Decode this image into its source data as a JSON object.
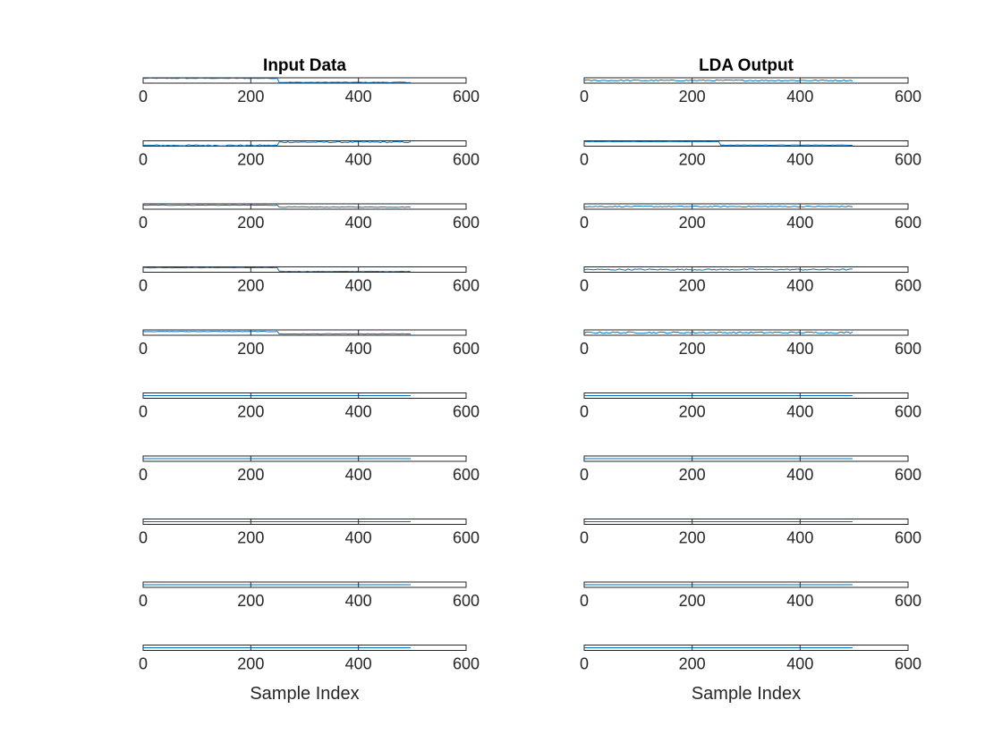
{
  "colors": {
    "line": "#0072BD",
    "axes": "#262626",
    "background": "#ffffff"
  },
  "chart_data": [
    {
      "type": "line",
      "title": "Input Data",
      "xlabel": "Sample Index",
      "ylabel": "",
      "xlim": [
        0,
        600
      ],
      "xticks": [
        0,
        200,
        400,
        600
      ],
      "xtick_labels": [
        "0",
        "200",
        "400",
        "600"
      ],
      "grid": false,
      "subplots": [
        {
          "x_range": [
            1,
            500
          ],
          "segments": [
            {
              "from": 1,
              "to": 250,
              "level": 0.9
            },
            {
              "from": 251,
              "to": 500,
              "level": 0.15
            }
          ],
          "noise": 0.05
        },
        {
          "x_range": [
            1,
            500
          ],
          "segments": [
            {
              "from": 1,
              "to": 250,
              "level": 0.15
            },
            {
              "from": 251,
              "to": 500,
              "level": 0.75
            }
          ],
          "noise": 0.12
        },
        {
          "x_range": [
            1,
            500
          ],
          "segments": [
            {
              "from": 1,
              "to": 250,
              "level": 0.75
            },
            {
              "from": 251,
              "to": 500,
              "level": 0.4
            }
          ],
          "noise": 0.05
        },
        {
          "x_range": [
            1,
            500
          ],
          "segments": [
            {
              "from": 1,
              "to": 250,
              "level": 0.85
            },
            {
              "from": 251,
              "to": 500,
              "level": 0.15
            }
          ],
          "noise": 0.05
        },
        {
          "x_range": [
            1,
            500
          ],
          "segments": [
            {
              "from": 1,
              "to": 250,
              "level": 0.7
            },
            {
              "from": 251,
              "to": 500,
              "level": 0.25
            }
          ],
          "noise": 0.04
        },
        {
          "x_range": [
            1,
            500
          ],
          "segments": [
            {
              "from": 1,
              "to": 500,
              "level": 0.5
            }
          ],
          "noise": 0.0
        },
        {
          "x_range": [
            1,
            500
          ],
          "segments": [
            {
              "from": 1,
              "to": 500,
              "level": 0.5
            }
          ],
          "noise": 0.0
        },
        {
          "x_range": [
            1,
            500
          ],
          "segments": [
            {
              "from": 1,
              "to": 500,
              "level": 0.5
            }
          ],
          "noise": 0.0
        },
        {
          "x_range": [
            1,
            500
          ],
          "segments": [
            {
              "from": 1,
              "to": 500,
              "level": 0.5
            }
          ],
          "noise": 0.0
        },
        {
          "x_range": [
            1,
            500
          ],
          "segments": [
            {
              "from": 1,
              "to": 500,
              "level": 0.5
            }
          ],
          "noise": 0.0
        }
      ]
    },
    {
      "type": "line",
      "title": "LDA Output",
      "xlabel": "Sample Index",
      "ylabel": "",
      "xlim": [
        0,
        600
      ],
      "xticks": [
        0,
        200,
        400,
        600
      ],
      "xtick_labels": [
        "0",
        "200",
        "400",
        "600"
      ],
      "grid": false,
      "subplots": [
        {
          "x_range": [
            1,
            500
          ],
          "segments": [
            {
              "from": 1,
              "to": 500,
              "level": 0.5
            }
          ],
          "noise": 0.12
        },
        {
          "x_range": [
            1,
            500
          ],
          "segments": [
            {
              "from": 1,
              "to": 250,
              "level": 0.85
            },
            {
              "from": 251,
              "to": 500,
              "level": 0.2
            }
          ],
          "noise": 0.04
        },
        {
          "x_range": [
            1,
            500
          ],
          "segments": [
            {
              "from": 1,
              "to": 250,
              "level": 0.5
            },
            {
              "from": 251,
              "to": 500,
              "level": 0.5
            }
          ],
          "noise": 0.1
        },
        {
          "x_range": [
            1,
            500
          ],
          "segments": [
            {
              "from": 1,
              "to": 500,
              "level": 0.5
            }
          ],
          "noise": 0.12
        },
        {
          "x_range": [
            1,
            500
          ],
          "segments": [
            {
              "from": 1,
              "to": 500,
              "level": 0.5
            }
          ],
          "noise": 0.15
        },
        {
          "x_range": [
            1,
            500
          ],
          "segments": [
            {
              "from": 1,
              "to": 500,
              "level": 0.5
            }
          ],
          "noise": 0.0
        },
        {
          "x_range": [
            1,
            500
          ],
          "segments": [
            {
              "from": 1,
              "to": 500,
              "level": 0.5
            }
          ],
          "noise": 0.0
        },
        {
          "x_range": [
            1,
            500
          ],
          "segments": [
            {
              "from": 1,
              "to": 500,
              "level": 0.5
            }
          ],
          "noise": 0.0
        },
        {
          "x_range": [
            1,
            500
          ],
          "segments": [
            {
              "from": 1,
              "to": 500,
              "level": 0.5
            }
          ],
          "noise": 0.0
        },
        {
          "x_range": [
            1,
            500
          ],
          "segments": [
            {
              "from": 1,
              "to": 500,
              "level": 0.5
            }
          ],
          "noise": 0.0
        }
      ]
    }
  ]
}
